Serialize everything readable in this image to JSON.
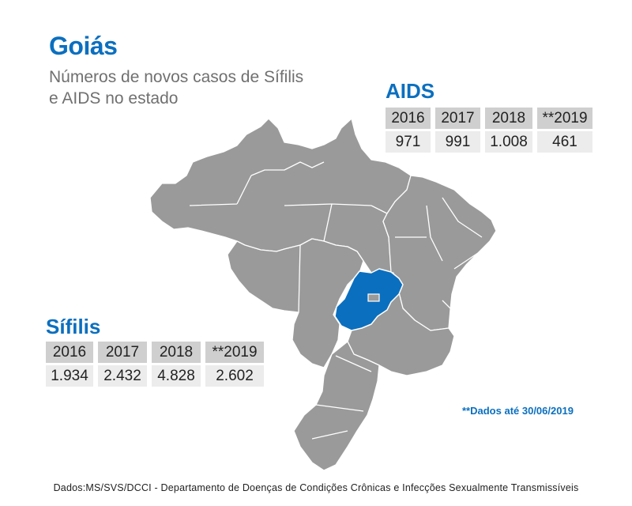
{
  "header": {
    "title": "Goiás",
    "subtitle": "Números de novos casos de Sífilis e AIDS no estado"
  },
  "colors": {
    "accent": "#0b6fbf",
    "map_gray": "#9a9a9a",
    "highlight": "#0b6fbf",
    "header_cell": "#cfcfcf",
    "value_cell": "#ececec"
  },
  "chart_data": [
    {
      "type": "table",
      "title": "AIDS",
      "categories": [
        "2016",
        "2017",
        "2018",
        "**2019"
      ],
      "values": [
        "971",
        "991",
        "1.008",
        "461"
      ]
    },
    {
      "type": "table",
      "title": "Sífilis",
      "categories": [
        "2016",
        "2017",
        "2018",
        "**2019"
      ],
      "values": [
        "1.934",
        "2.432",
        "4.828",
        "2.602"
      ]
    }
  ],
  "map": {
    "country": "Brasil",
    "highlighted_state": "Goiás"
  },
  "footnote": "**Dados até 30/06/2019",
  "source": "Dados:MS/SVS/DCCI - Departamento de Doenças de Condições Crônicas e Infecções Sexualmente Transmissíveis"
}
